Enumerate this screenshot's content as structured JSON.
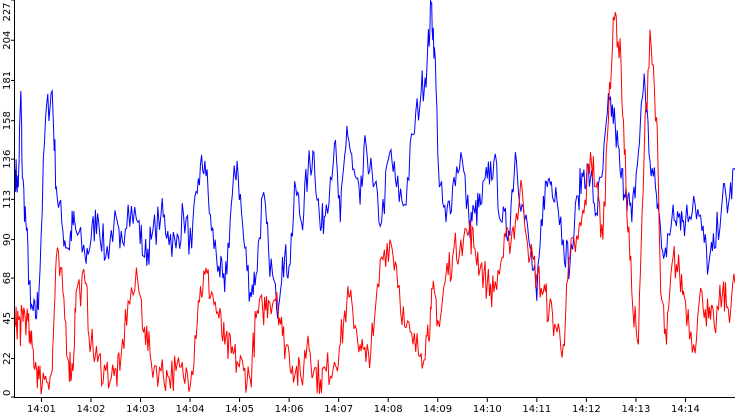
{
  "chart_data": {
    "type": "line",
    "title": "",
    "xlabel": "",
    "ylabel": "",
    "ylim": [
      0,
      227
    ],
    "xlim": [
      "14:00:28",
      "14:15:00"
    ],
    "y_ticks": [
      0,
      22,
      45,
      68,
      90,
      113,
      136,
      158,
      181,
      204,
      227
    ],
    "x_ticks": [
      "14:01",
      "14:02",
      "14:03",
      "14:04",
      "14:05",
      "14:06",
      "14:07",
      "14:08",
      "14:09",
      "14:10",
      "14:11",
      "14:12",
      "14:13",
      "14:14"
    ],
    "grid": false,
    "legend": "none",
    "x_keyframes": [
      "14:00:28",
      "14:00:32",
      "14:00:35",
      "14:00:37",
      "14:00:42",
      "14:00:47",
      "14:00:53",
      "14:00:57",
      "14:01:05",
      "14:01:13",
      "14:01:18",
      "14:01:26",
      "14:01:33",
      "14:01:38",
      "14:01:42",
      "14:01:53",
      "14:02:00",
      "14:02:08",
      "14:02:18",
      "14:02:28",
      "14:02:35",
      "14:02:45",
      "14:02:57",
      "14:03:05",
      "14:03:13",
      "14:03:25",
      "14:03:33",
      "14:03:43",
      "14:03:52",
      "14:04:02",
      "14:04:10",
      "14:04:18",
      "14:04:26",
      "14:04:35",
      "14:04:42",
      "14:04:50",
      "14:04:57",
      "14:05:05",
      "14:05:13",
      "14:05:20",
      "14:05:28",
      "14:05:35",
      "14:05:45",
      "14:05:52",
      "14:06:00",
      "14:06:08",
      "14:06:15",
      "14:06:23",
      "14:06:30",
      "14:06:38",
      "14:06:45",
      "14:06:55",
      "14:07:02",
      "14:07:10",
      "14:07:17",
      "14:07:26",
      "14:07:33",
      "14:07:42",
      "14:07:52",
      "14:08:02",
      "14:08:10",
      "14:08:20",
      "14:08:30",
      "14:08:40",
      "14:08:47",
      "14:08:52",
      "14:08:56",
      "14:09:02",
      "14:09:10",
      "14:09:18",
      "14:09:28",
      "14:09:38",
      "14:09:45",
      "14:09:52",
      "14:10:00",
      "14:10:08",
      "14:10:18",
      "14:10:26",
      "14:10:34",
      "14:10:42",
      "14:10:52",
      "14:11:00",
      "14:11:08",
      "14:11:15",
      "14:11:23",
      "14:11:32",
      "14:11:40",
      "14:11:50",
      "14:11:57",
      "14:12:05",
      "14:12:12",
      "14:12:20",
      "14:12:28",
      "14:12:35",
      "14:12:42",
      "14:12:48",
      "14:12:55",
      "14:13:03",
      "14:13:10",
      "14:13:17",
      "14:13:25",
      "14:13:30",
      "14:13:37",
      "14:13:45",
      "14:13:53",
      "14:14:00",
      "14:14:10",
      "14:14:20",
      "14:14:28",
      "14:14:35",
      "14:14:45",
      "14:14:52",
      "14:15:00"
    ],
    "series": [
      {
        "color": "#0000ff",
        "values": [
          130,
          120,
          175,
          125,
          95,
          50,
          45,
          60,
          160,
          175,
          120,
          95,
          85,
          100,
          95,
          80,
          90,
          105,
          80,
          100,
          85,
          110,
          100,
          80,
          90,
          105,
          95,
          85,
          105,
          85,
          125,
          135,
          95,
          75,
          60,
          110,
          135,
          90,
          60,
          70,
          115,
          85,
          50,
          80,
          75,
          120,
          100,
          130,
          140,
          95,
          110,
          145,
          100,
          155,
          130,
          110,
          145,
          120,
          100,
          140,
          120,
          110,
          150,
          175,
          190,
          225,
          200,
          120,
          100,
          120,
          140,
          100,
          105,
          110,
          125,
          135,
          100,
          95,
          140,
          110,
          85,
          55,
          115,
          125,
          120,
          90,
          75,
          115,
          130,
          125,
          105,
          130,
          170,
          155,
          125,
          120,
          100,
          140,
          185,
          135,
          115,
          95,
          80,
          110,
          105,
          100,
          115,
          95,
          75,
          85,
          115,
          110,
          130
        ]
      },
      {
        "color": "#ff0000",
        "values": [
          40,
          45,
          38,
          50,
          45,
          30,
          20,
          10,
          12,
          15,
          80,
          60,
          20,
          15,
          60,
          65,
          30,
          20,
          15,
          12,
          15,
          55,
          65,
          40,
          20,
          15,
          12,
          15,
          12,
          15,
          55,
          70,
          60,
          45,
          30,
          25,
          20,
          15,
          10,
          45,
          50,
          55,
          60,
          35,
          25,
          15,
          10,
          35,
          15,
          10,
          15,
          20,
          30,
          55,
          50,
          30,
          20,
          35,
          80,
          90,
          75,
          40,
          30,
          25,
          35,
          50,
          60,
          40,
          70,
          80,
          90,
          95,
          85,
          75,
          65,
          60,
          80,
          90,
          100,
          120,
          80,
          70,
          60,
          50,
          40,
          30,
          80,
          90,
          105,
          140,
          120,
          90,
          180,
          220,
          190,
          120,
          60,
          30,
          140,
          210,
          160,
          60,
          30,
          80,
          70,
          55,
          30,
          60,
          45,
          40,
          60,
          50,
          65
        ]
      }
    ]
  }
}
